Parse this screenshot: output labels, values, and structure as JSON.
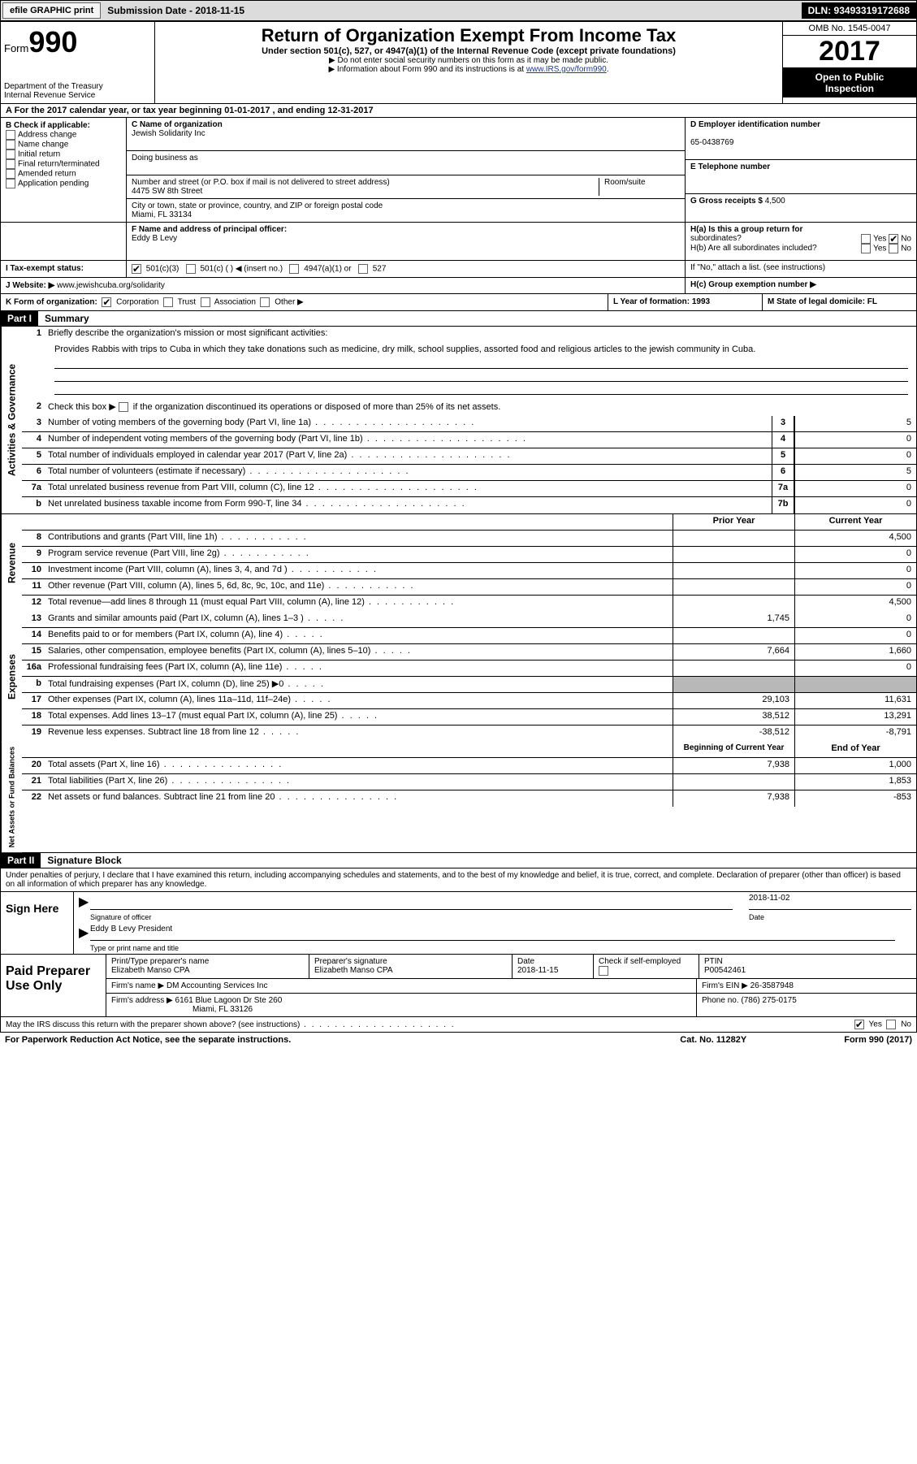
{
  "topbar": {
    "efile": "efile GRAPHIC print",
    "submission": "Submission Date - 2018-11-15",
    "dln": "DLN: 93493319172688"
  },
  "header": {
    "form_label": "Form",
    "form_num": "990",
    "dept1": "Department of the Treasury",
    "dept2": "Internal Revenue Service",
    "title": "Return of Organization Exempt From Income Tax",
    "subtitle": "Under section 501(c), 527, or 4947(a)(1) of the Internal Revenue Code (except private foundations)",
    "note1": "▶ Do not enter social security numbers on this form as it may be made public.",
    "note2_pre": "▶ Information about Form 990 and its instructions is at ",
    "note2_link": "www.IRS.gov/form990",
    "omb": "OMB No. 1545-0047",
    "year": "2017",
    "open1": "Open to Public",
    "open2": "Inspection"
  },
  "rowA": "A   For the 2017 calendar year, or tax year beginning 01-01-2017    , and ending 12-31-2017",
  "B": {
    "label": "B Check if applicable:",
    "opts": [
      "Address change",
      "Name change",
      "Initial return",
      "Final return/terminated",
      "Amended return",
      "Application pending"
    ]
  },
  "C": {
    "name_label": "C Name of organization",
    "name": "Jewish Solidarity Inc",
    "dba_label": "Doing business as",
    "addr_label": "Number and street (or P.O. box if mail is not delivered to street address)",
    "room_label": "Room/suite",
    "addr": "4475 SW 8th Street",
    "city_label": "City or town, state or province, country, and ZIP or foreign postal code",
    "city": "Miami, FL  33134"
  },
  "D": {
    "label": "D Employer identification number",
    "value": "65-0438769"
  },
  "E": {
    "label": "E Telephone number"
  },
  "G": {
    "label": "G Gross receipts $",
    "value": "4,500"
  },
  "F": {
    "label": "F  Name and address of principal officer:",
    "value": "Eddy B Levy"
  },
  "H": {
    "a": "H(a)  Is this a group return for",
    "a2": "subordinates?",
    "b": "H(b)  Are all subordinates included?",
    "b2": "If \"No,\" attach a list. (see instructions)",
    "c": "H(c)  Group exemption number ▶",
    "yes": "Yes",
    "no": "No"
  },
  "I": {
    "label": "I   Tax-exempt status:",
    "o1": "501(c)(3)",
    "o2": "501(c) (   ) ◀ (insert no.)",
    "o3": "4947(a)(1) or",
    "o4": "527"
  },
  "J": {
    "label": "J   Website: ▶",
    "value": "www.jewishcuba.org/solidarity"
  },
  "K": {
    "label": "K Form of organization:",
    "o1": "Corporation",
    "o2": "Trust",
    "o3": "Association",
    "o4": "Other ▶"
  },
  "L": {
    "label": "L Year of formation: 1993"
  },
  "M": {
    "label": "M State of legal domicile: FL"
  },
  "part1": {
    "hdr": "Part I",
    "title": "Summary"
  },
  "summary": {
    "l1": "Briefly describe the organization's mission or most significant activities:",
    "mission": "Provides Rabbis with trips to Cuba in which they take donations such as medicine, dry milk, school supplies, assorted food and religious articles to the jewish community in Cuba.",
    "l2_pre": "Check this box ▶",
    "l2_post": " if the organization discontinued its operations or disposed of more than 25% of its net assets.",
    "lines": [
      {
        "n": "3",
        "t": "Number of voting members of the governing body (Part VI, line 1a)",
        "box": "3",
        "v": "5"
      },
      {
        "n": "4",
        "t": "Number of independent voting members of the governing body (Part VI, line 1b)",
        "box": "4",
        "v": "0"
      },
      {
        "n": "5",
        "t": "Total number of individuals employed in calendar year 2017 (Part V, line 2a)",
        "box": "5",
        "v": "0"
      },
      {
        "n": "6",
        "t": "Total number of volunteers (estimate if necessary)",
        "box": "6",
        "v": "5"
      },
      {
        "n": "7a",
        "t": "Total unrelated business revenue from Part VIII, column (C), line 12",
        "box": "7a",
        "v": "0"
      },
      {
        "n": "b",
        "t": "Net unrelated business taxable income from Form 990-T, line 34",
        "box": "7b",
        "v": "0"
      }
    ]
  },
  "colhdr": {
    "prior": "Prior Year",
    "current": "Current Year"
  },
  "revenue": [
    {
      "n": "8",
      "t": "Contributions and grants (Part VIII, line 1h)",
      "p": "",
      "c": "4,500"
    },
    {
      "n": "9",
      "t": "Program service revenue (Part VIII, line 2g)",
      "p": "",
      "c": "0"
    },
    {
      "n": "10",
      "t": "Investment income (Part VIII, column (A), lines 3, 4, and 7d )",
      "p": "",
      "c": "0"
    },
    {
      "n": "11",
      "t": "Other revenue (Part VIII, column (A), lines 5, 6d, 8c, 9c, 10c, and 11e)",
      "p": "",
      "c": "0"
    },
    {
      "n": "12",
      "t": "Total revenue—add lines 8 through 11 (must equal Part VIII, column (A), line 12)",
      "p": "",
      "c": "4,500"
    }
  ],
  "expenses": [
    {
      "n": "13",
      "t": "Grants and similar amounts paid (Part IX, column (A), lines 1–3 )",
      "p": "1,745",
      "c": "0"
    },
    {
      "n": "14",
      "t": "Benefits paid to or for members (Part IX, column (A), line 4)",
      "p": "",
      "c": "0"
    },
    {
      "n": "15",
      "t": "Salaries, other compensation, employee benefits (Part IX, column (A), lines 5–10)",
      "p": "7,664",
      "c": "1,660"
    },
    {
      "n": "16a",
      "t": "Professional fundraising fees (Part IX, column (A), line 11e)",
      "p": "",
      "c": "0"
    },
    {
      "n": "b",
      "t": "Total fundraising expenses (Part IX, column (D), line 25) ▶0",
      "p": "shade",
      "c": "shade"
    },
    {
      "n": "17",
      "t": "Other expenses (Part IX, column (A), lines 11a–11d, 11f–24e)",
      "p": "29,103",
      "c": "11,631"
    },
    {
      "n": "18",
      "t": "Total expenses. Add lines 13–17 (must equal Part IX, column (A), line 25)",
      "p": "38,512",
      "c": "13,291"
    },
    {
      "n": "19",
      "t": "Revenue less expenses. Subtract line 18 from line 12",
      "p": "-38,512",
      "c": "-8,791"
    }
  ],
  "colhdr2": {
    "begin": "Beginning of Current Year",
    "end": "End of Year"
  },
  "netassets": [
    {
      "n": "20",
      "t": "Total assets (Part X, line 16)",
      "p": "7,938",
      "c": "1,000"
    },
    {
      "n": "21",
      "t": "Total liabilities (Part X, line 26)",
      "p": "",
      "c": "1,853"
    },
    {
      "n": "22",
      "t": "Net assets or fund balances. Subtract line 21 from line 20",
      "p": "7,938",
      "c": "-853"
    }
  ],
  "sidetabs": {
    "ag": "Activities & Governance",
    "rev": "Revenue",
    "exp": "Expenses",
    "na": "Net Assets or\nFund Balances"
  },
  "part2": {
    "hdr": "Part II",
    "title": "Signature Block"
  },
  "sig": {
    "decl": "Under penalties of perjury, I declare that I have examined this return, including accompanying schedules and statements, and to the best of my knowledge and belief, it is true, correct, and complete. Declaration of preparer (other than officer) is based on all information of which preparer has any knowledge.",
    "sign_here": "Sign Here",
    "sig_of_officer": "Signature of officer",
    "date_label": "Date",
    "date": "2018-11-02",
    "officer": "Eddy B Levy President",
    "type_name": "Type or print name and title"
  },
  "prep": {
    "side": "Paid Preparer Use Only",
    "name_label": "Print/Type preparer's name",
    "name": "Elizabeth Manso CPA",
    "sig_label": "Preparer's signature",
    "sig": "Elizabeth Manso CPA",
    "pdate_label": "Date",
    "pdate": "2018-11-15",
    "check_label": "Check         if self-employed",
    "ptin_label": "PTIN",
    "ptin": "P00542461",
    "firm_label": "Firm's name     ▶",
    "firm": "DM Accounting Services Inc",
    "ein_label": "Firm's EIN ▶",
    "ein": "26-3587948",
    "addr_label": "Firm's address ▶",
    "addr1": "6161 Blue Lagoon Dr Ste 260",
    "addr2": "Miami, FL  33126",
    "phone_label": "Phone no.",
    "phone": "(786) 275-0175"
  },
  "discuss": {
    "q": "May the IRS discuss this return with the preparer shown above? (see instructions)",
    "yes": "Yes",
    "no": "No"
  },
  "footer": {
    "pra": "For Paperwork Reduction Act Notice, see the separate instructions.",
    "cat": "Cat. No. 11282Y",
    "form": "Form 990 (2017)"
  },
  "colors": {
    "topbar_bg": "#dcdcdc",
    "black": "#000000",
    "link": "#203a8d",
    "shade": "#b8b8b8"
  }
}
